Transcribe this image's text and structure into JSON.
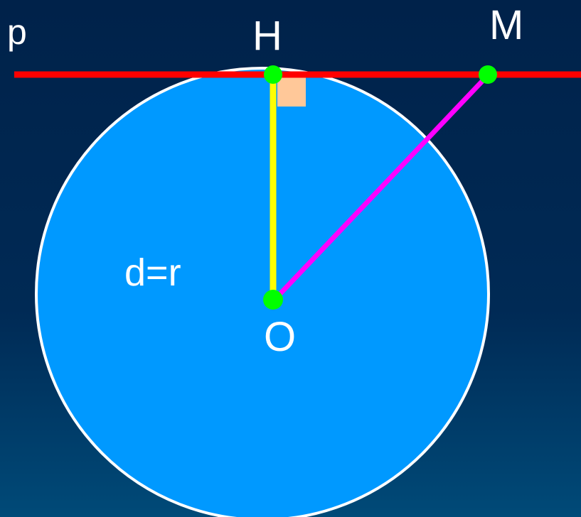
{
  "labels": {
    "line": "p",
    "foot": "H",
    "point": "M",
    "center": "O",
    "relation": "d=r"
  }
}
